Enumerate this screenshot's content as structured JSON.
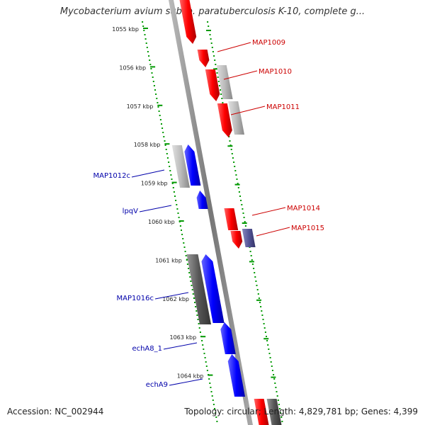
{
  "title": "Mycobacterium avium subsp. paratuberculosis K-10, complete g...",
  "footer": {
    "accession": "Accession: NC_002944",
    "stats": "Topology: circular; Length: 4,829,781 bp; Genes: 4,399"
  },
  "ticks": [
    {
      "label": "1055 kbp",
      "kbp": 1055
    },
    {
      "label": "1056 kbp",
      "kbp": 1056
    },
    {
      "label": "1057 kbp",
      "kbp": 1057
    },
    {
      "label": "1058 kbp",
      "kbp": 1058
    },
    {
      "label": "1059 kbp",
      "kbp": 1059
    },
    {
      "label": "1060 kbp",
      "kbp": 1060
    },
    {
      "label": "1061 kbp",
      "kbp": 1061
    },
    {
      "label": "1062 kbp",
      "kbp": 1062
    },
    {
      "label": "1063 kbp",
      "kbp": 1063
    },
    {
      "label": "1064 kbp",
      "kbp": 1064
    }
  ],
  "genes_forward": [
    {
      "name": "MAP1009",
      "color": "#cc0000"
    },
    {
      "name": "MAP1010",
      "color": "#cc0000"
    },
    {
      "name": "MAP1011",
      "color": "#cc0000"
    },
    {
      "name": "MAP1014",
      "color": "#cc0000"
    },
    {
      "name": "MAP1015",
      "color": "#cc0000"
    }
  ],
  "genes_reverse": [
    {
      "name": "MAP1012c",
      "color": "#0000aa"
    },
    {
      "name": "lpqV",
      "color": "#0000aa"
    },
    {
      "name": "MAP1016c",
      "color": "#0000aa"
    },
    {
      "name": "echA8_1",
      "color": "#0000aa"
    },
    {
      "name": "echA9",
      "color": "#0000aa"
    }
  ],
  "colors": {
    "forward_cds": "#ff0000",
    "reverse_cds": "#0000ff",
    "gene_gray": "#bbbbbb",
    "dark_gray": "#555555",
    "purple": "#555599",
    "backbone": "#888888",
    "dots": "#009900"
  }
}
